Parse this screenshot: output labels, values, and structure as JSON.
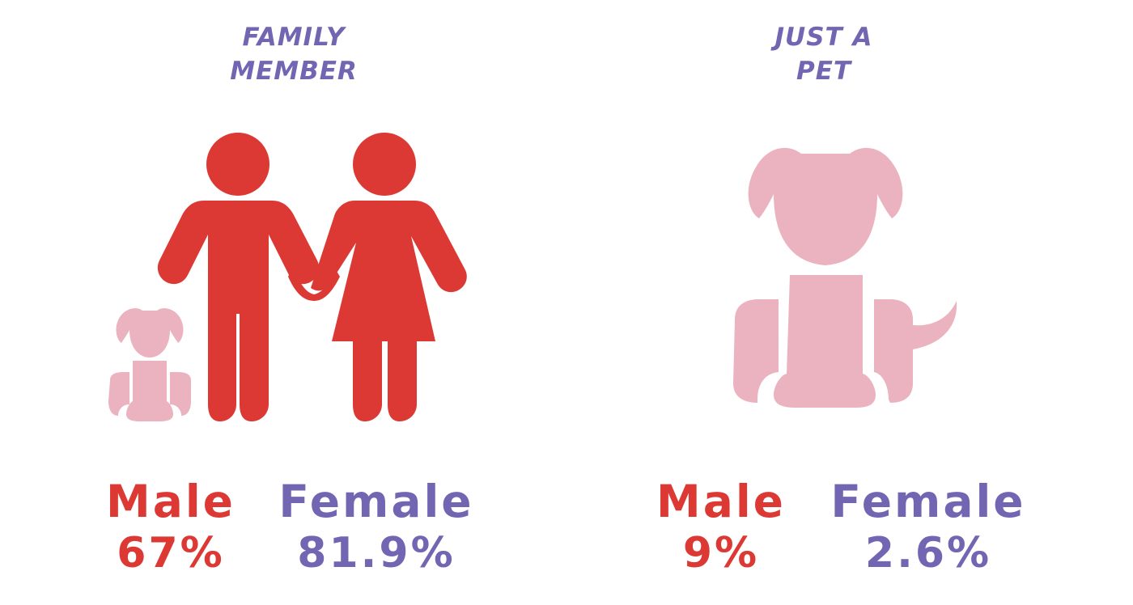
{
  "colors": {
    "male": "#dd3934",
    "female": "#7266b3",
    "dog": "#ebb3c0",
    "background": "#ffffff"
  },
  "family_member": {
    "heading_line1": "FAMILY",
    "heading_line2": "MEMBER",
    "icons": [
      "man-icon",
      "woman-icon",
      "small-dog-icon"
    ],
    "male_label": "Male",
    "male_value": "67%",
    "female_label": "Female",
    "female_value": "81.9%"
  },
  "just_a_pet": {
    "heading_line1": "JUST A",
    "heading_line2": "PET",
    "icons": [
      "dog-icon"
    ],
    "male_label": "Male",
    "male_value": "9%",
    "female_label": "Female",
    "female_value": "2.6%"
  }
}
